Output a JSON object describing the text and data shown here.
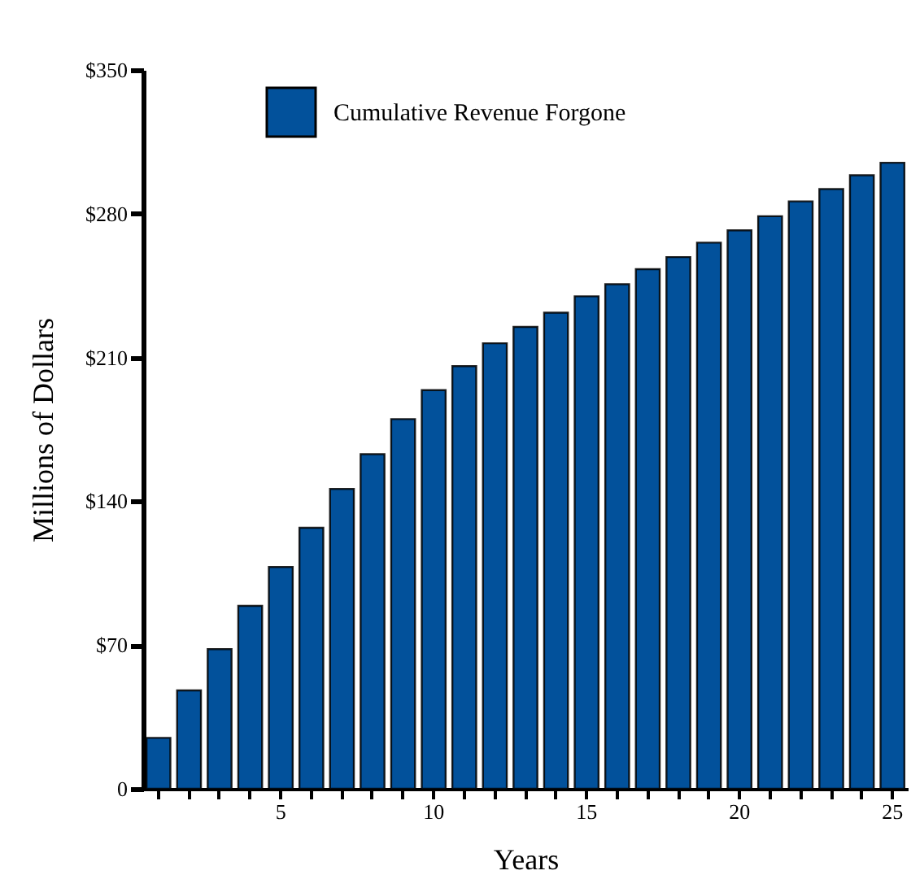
{
  "chart_data": {
    "type": "bar",
    "xlabel": "Years",
    "ylabel": "Millions of Dollars",
    "categories": [
      null,
      null,
      null,
      null,
      "5",
      null,
      null,
      null,
      null,
      "10",
      null,
      null,
      null,
      null,
      "15",
      null,
      null,
      null,
      null,
      "20",
      null,
      null,
      null,
      null,
      "25"
    ],
    "series": [
      {
        "name": "Cumulative Revenue Forgone",
        "color": "#02519b",
        "values": [
          24.8,
          47.9,
          68.0,
          89.1,
          108.0,
          127.1,
          146.0,
          162.9,
          180.0,
          194.1,
          205.8,
          216.9,
          224.9,
          231.8,
          239.8,
          245.7,
          253.0,
          258.9,
          265.9,
          271.9,
          278.8,
          286.0,
          292.0,
          298.7,
          304.8
        ]
      }
    ],
    "ylim": [
      0,
      350
    ],
    "yticks": [
      0,
      {
        "value": 70,
        "label": "$70"
      },
      {
        "value": 140,
        "label": "$140"
      },
      {
        "value": 210,
        "label": "$210"
      },
      {
        "value": 280,
        "label": "$280"
      },
      {
        "value": 350,
        "label": "$350"
      }
    ],
    "grid": false,
    "legend": "top left"
  }
}
